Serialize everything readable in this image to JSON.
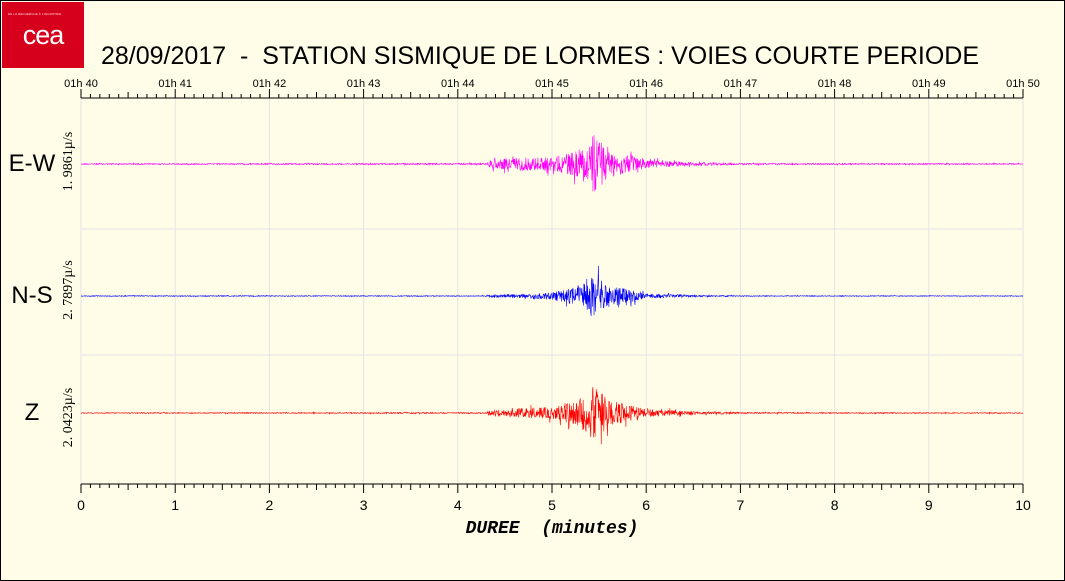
{
  "logo": {
    "text": "cea",
    "tagline": "DE LA RECHERCHE À L'INDUSTRIE",
    "colors": {
      "background": "#d6001c",
      "text": "#ffffff"
    }
  },
  "colors": {
    "background": "#fffde8",
    "grid": "#e4e4e4",
    "axis": "#000000"
  },
  "chart_data": {
    "type": "line",
    "title": "28/09/2017  -  STATION SISMIQUE DE LORMES : VOIES COURTE PERIODE",
    "xlabel": "DUREE  (minutes)",
    "xlim": [
      0,
      10
    ],
    "x_ticks": [
      "0",
      "1",
      "2",
      "3",
      "4",
      "5",
      "6",
      "7",
      "8",
      "9",
      "10"
    ],
    "top_ticks": [
      "01h 40",
      "01h 41",
      "01h 42",
      "01h 43",
      "01h 44",
      "01h 45",
      "01h 46",
      "01h 47",
      "01h 48",
      "01h 49",
      "01h 50"
    ],
    "grid": true,
    "series": [
      {
        "name": "E-W",
        "scale_label": "1. 9861µ/s",
        "color": "#ff00ff",
        "envelope": {
          "minutes": [
            0,
            4.3,
            4.35,
            4.6,
            5.0,
            5.3,
            5.45,
            5.6,
            6.0,
            6.5,
            7.0,
            10
          ],
          "amplitude": [
            0.015,
            0.02,
            0.12,
            0.18,
            0.2,
            0.38,
            0.85,
            0.4,
            0.12,
            0.05,
            0.02,
            0.015
          ]
        }
      },
      {
        "name": "N-S",
        "scale_label": "2. 7897µ/s",
        "color": "#0000ff",
        "envelope": {
          "minutes": [
            0,
            4.3,
            4.35,
            4.7,
            5.0,
            5.3,
            5.42,
            5.6,
            6.0,
            6.5,
            7.0,
            10
          ],
          "amplitude": [
            0.01,
            0.01,
            0.03,
            0.05,
            0.1,
            0.25,
            0.55,
            0.3,
            0.06,
            0.025,
            0.01,
            0.008
          ]
        }
      },
      {
        "name": "Z",
        "scale_label": "2. 0423µ/s",
        "color": "#ff0000",
        "envelope": {
          "minutes": [
            0,
            4.3,
            4.35,
            4.6,
            5.0,
            5.3,
            5.45,
            5.6,
            6.0,
            6.5,
            7.0,
            10
          ],
          "amplitude": [
            0.01,
            0.015,
            0.08,
            0.12,
            0.15,
            0.38,
            0.75,
            0.35,
            0.1,
            0.04,
            0.015,
            0.01
          ]
        }
      }
    ]
  }
}
